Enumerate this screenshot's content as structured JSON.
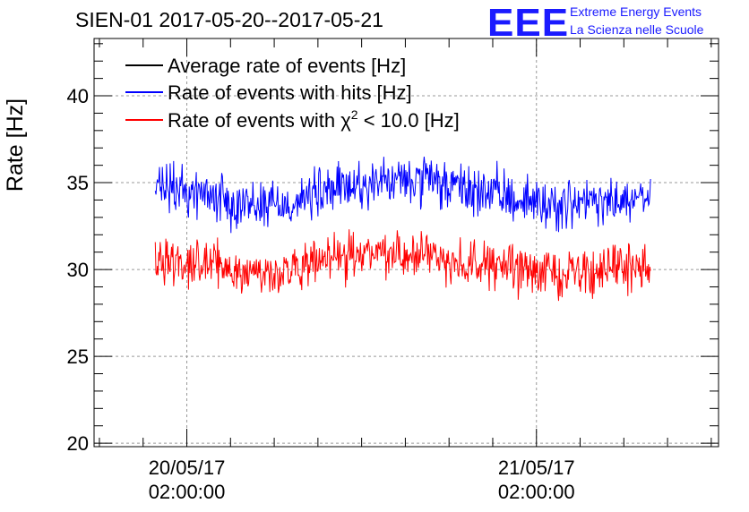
{
  "chart_data": {
    "type": "line",
    "title": "SIEN-01 2017-05-20--2017-05-21",
    "ylabel": "Rate [Hz]",
    "xlabel": "",
    "ylim": [
      19.8,
      43.3
    ],
    "yticks": [
      20,
      25,
      30,
      35,
      40
    ],
    "xlim": [
      "2017-05-19 19:38",
      "2017-05-21 14:30"
    ],
    "xticks": [
      {
        "t": "2017-05-20 02:00",
        "line1": "20/05/17",
        "line2": "02:00:00"
      },
      {
        "t": "2017-05-21 02:00",
        "line1": "21/05/17",
        "line2": "02:00:00"
      }
    ],
    "data_range": [
      "2017-05-19 23:50",
      "2017-05-21 09:50"
    ],
    "grid": true,
    "legend_position": "top-left",
    "series": [
      {
        "name": "Average rate of events [Hz]",
        "color": "#000000",
        "x": [],
        "y": []
      },
      {
        "name": "Rate of events with hits [Hz]",
        "color": "#0000ff",
        "x": [
          "2017-05-19 23:50",
          "2017-05-20 03:00",
          "2017-05-20 06:00",
          "2017-05-20 09:00",
          "2017-05-20 12:00",
          "2017-05-20 15:00",
          "2017-05-20 18:00",
          "2017-05-20 21:00",
          "2017-05-21 00:00",
          "2017-05-21 03:00",
          "2017-05-21 06:00",
          "2017-05-21 09:50"
        ],
        "y": [
          34.7,
          34.4,
          33.8,
          33.8,
          34.6,
          35.0,
          35.1,
          34.6,
          34.2,
          33.7,
          33.8,
          34.0
        ],
        "noise_amplitude": 1.1
      },
      {
        "name_prefix": "Rate of events with ",
        "name_symbol": "χ",
        "name_exponent": "2",
        "name_suffix": " < 10.0 [Hz]",
        "color": "#ff0000",
        "x": [
          "2017-05-19 23:50",
          "2017-05-20 03:00",
          "2017-05-20 06:00",
          "2017-05-20 09:00",
          "2017-05-20 12:00",
          "2017-05-20 15:00",
          "2017-05-20 18:00",
          "2017-05-20 21:00",
          "2017-05-21 00:00",
          "2017-05-21 03:00",
          "2017-05-21 06:00",
          "2017-05-21 09:50"
        ],
        "y": [
          30.7,
          30.4,
          29.8,
          29.8,
          30.6,
          31.0,
          30.9,
          30.4,
          30.1,
          29.8,
          29.9,
          30.2
        ],
        "noise_amplitude": 1.0
      }
    ]
  },
  "logo": {
    "mark": "EEE",
    "line1": "Extreme Energy Events",
    "line2": "La Scienza nelle Scuole",
    "color": "#1a1aff"
  }
}
